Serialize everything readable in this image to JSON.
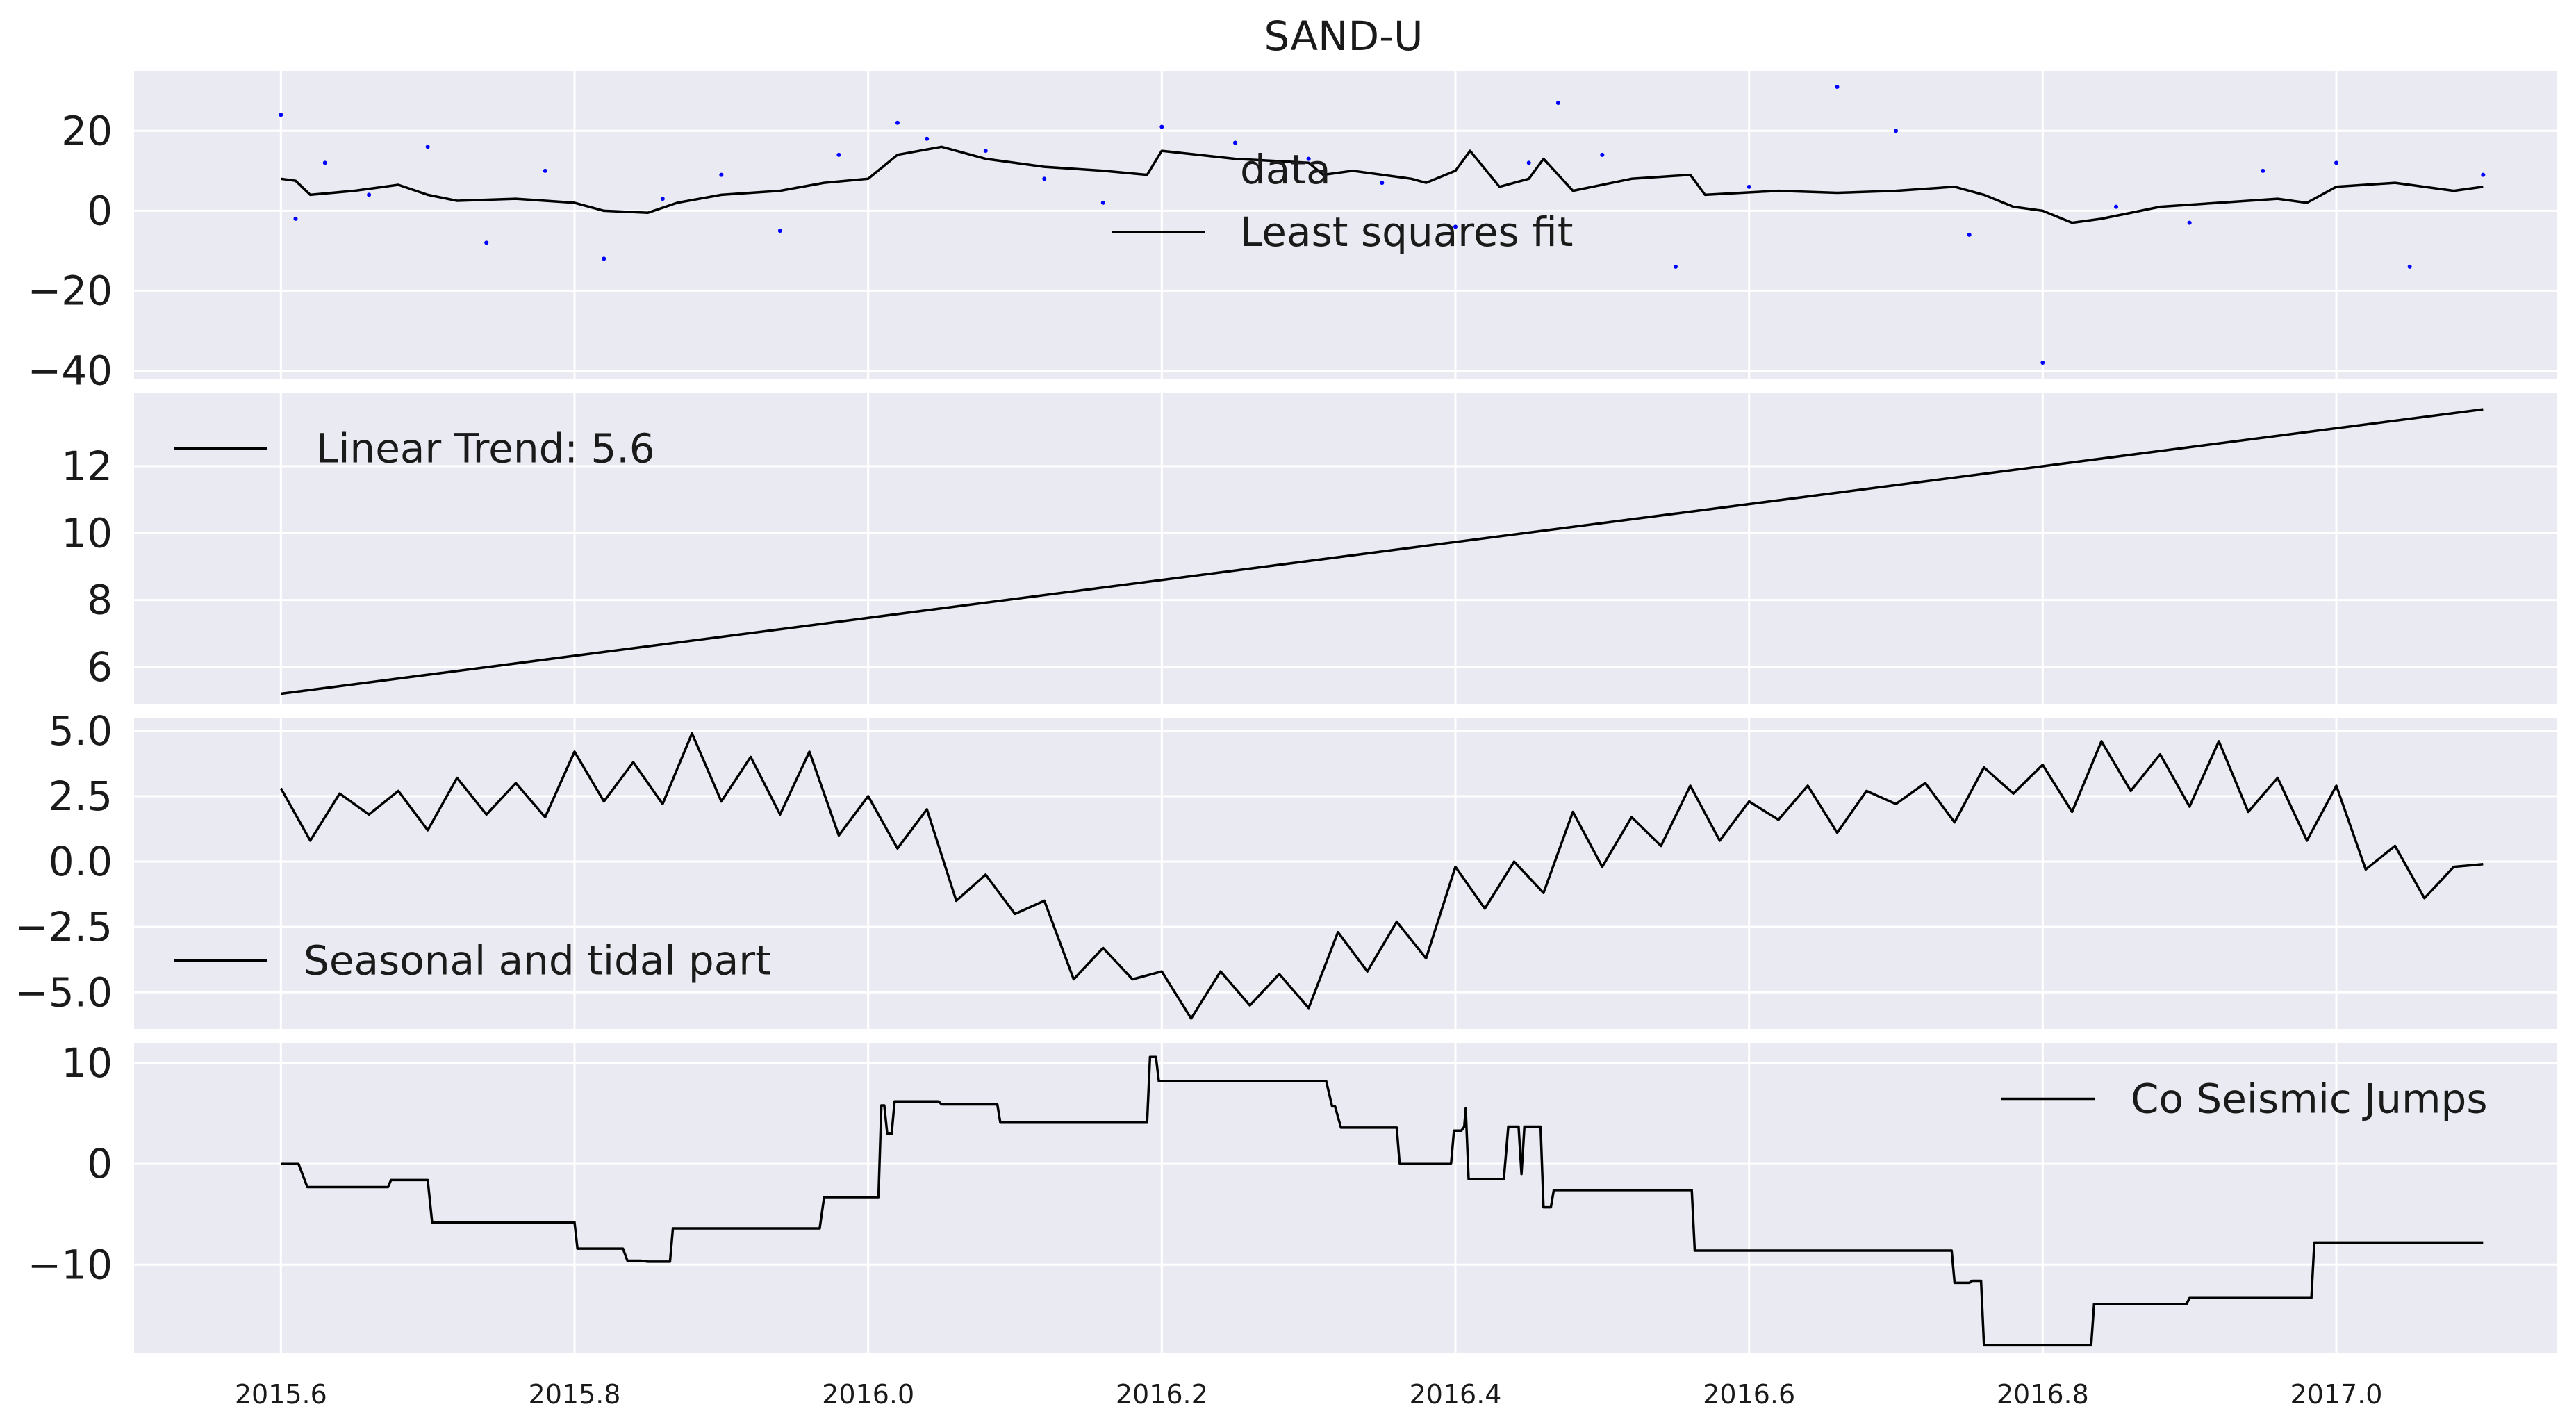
{
  "title": "SAND-U",
  "colors": {
    "panel_bg": "#eaeaf2",
    "grid": "#ffffff",
    "line": "#000000",
    "data_points": "#0000ff",
    "text": "#1a1a1a"
  },
  "chart_data": [
    {
      "panel": "residual-panel",
      "type": "scatter",
      "title": "SAND-U",
      "xlim": [
        2015.5,
        2017.15
      ],
      "ylim": [
        -42,
        35
      ],
      "yticks": [
        20,
        0,
        -20,
        -40
      ],
      "ytick_labels": [
        "20",
        "0",
        "−20",
        "−40"
      ],
      "legend": {
        "position": "center",
        "entries": [
          "data",
          "Least squares fit"
        ]
      },
      "series": [
        {
          "name": "data",
          "kind": "points",
          "x": [
            2015.6,
            2015.61,
            2015.63,
            2015.66,
            2015.7,
            2015.74,
            2015.78,
            2015.82,
            2015.86,
            2015.9,
            2015.94,
            2015.98,
            2016.02,
            2016.04,
            2016.08,
            2016.12,
            2016.16,
            2016.2,
            2016.25,
            2016.3,
            2016.35,
            2016.4,
            2016.45,
            2016.47,
            2016.5,
            2016.55,
            2016.6,
            2016.66,
            2016.7,
            2016.75,
            2016.8,
            2016.85,
            2016.9,
            2016.95,
            2017.0,
            2017.05,
            2017.1
          ],
          "y": [
            24,
            -2,
            12,
            4,
            16,
            -8,
            10,
            -12,
            3,
            9,
            -5,
            14,
            22,
            18,
            15,
            8,
            2,
            21,
            17,
            13,
            7,
            -4,
            12,
            27,
            14,
            -14,
            6,
            31,
            20,
            -6,
            -38,
            1,
            -3,
            10,
            12,
            -14,
            9
          ]
        },
        {
          "name": "Least squares fit",
          "kind": "line",
          "x": [
            2015.6,
            2015.61,
            2015.62,
            2015.65,
            2015.68,
            2015.7,
            2015.72,
            2015.76,
            2015.8,
            2015.82,
            2015.85,
            2015.87,
            2015.9,
            2015.94,
            2015.97,
            2016.0,
            2016.02,
            2016.05,
            2016.08,
            2016.12,
            2016.16,
            2016.19,
            2016.2,
            2016.25,
            2016.3,
            2016.31,
            2016.33,
            2016.37,
            2016.38,
            2016.4,
            2016.41,
            2016.43,
            2016.45,
            2016.46,
            2016.48,
            2016.52,
            2016.56,
            2016.57,
            2016.62,
            2016.66,
            2016.7,
            2016.74,
            2016.76,
            2016.78,
            2016.8,
            2016.82,
            2016.84,
            2016.88,
            2016.92,
            2016.96,
            2016.98,
            2017.0,
            2017.04,
            2017.08,
            2017.1
          ],
          "y": [
            8,
            7.5,
            4,
            5,
            6.5,
            4,
            2.5,
            3,
            2,
            0,
            -0.5,
            2,
            4,
            5,
            7,
            8,
            14,
            16,
            13,
            11,
            10,
            9,
            15,
            13,
            12,
            9,
            10,
            8,
            7,
            10,
            15,
            6,
            8,
            13,
            5,
            8,
            9,
            4,
            5,
            4.5,
            5,
            6,
            4,
            1,
            0,
            -3,
            -2,
            1,
            2,
            3,
            2,
            6,
            7,
            5,
            6
          ]
        }
      ]
    },
    {
      "panel": "linear-trend-panel",
      "type": "line",
      "xlim": [
        2015.5,
        2017.15
      ],
      "ylim": [
        4.9,
        14.2
      ],
      "yticks": [
        12,
        10,
        8,
        6
      ],
      "ytick_labels": [
        "12",
        "10",
        "8",
        "6"
      ],
      "legend": {
        "position": "top-left",
        "entries": [
          "Linear Trend: 5.6"
        ]
      },
      "series": [
        {
          "name": "Linear Trend: 5.6",
          "x": [
            2015.6,
            2017.1
          ],
          "y": [
            5.2,
            13.7
          ]
        }
      ]
    },
    {
      "panel": "seasonal-panel",
      "type": "line",
      "xlim": [
        2015.5,
        2017.15
      ],
      "ylim": [
        -6.4,
        5.5
      ],
      "yticks": [
        5.0,
        2.5,
        0.0,
        -2.5,
        -5.0
      ],
      "ytick_labels": [
        "5.0",
        "2.5",
        "0.0",
        "−2.5",
        "−5.0"
      ],
      "legend": {
        "position": "bottom-left",
        "entries": [
          "Seasonal and tidal part"
        ]
      },
      "series": [
        {
          "name": "Seasonal and tidal part",
          "x": [
            2015.6,
            2015.62,
            2015.64,
            2015.66,
            2015.68,
            2015.7,
            2015.72,
            2015.74,
            2015.76,
            2015.78,
            2015.8,
            2015.82,
            2015.84,
            2015.86,
            2015.88,
            2015.9,
            2015.92,
            2015.94,
            2015.96,
            2015.98,
            2016.0,
            2016.02,
            2016.04,
            2016.06,
            2016.08,
            2016.1,
            2016.12,
            2016.14,
            2016.16,
            2016.18,
            2016.2,
            2016.22,
            2016.24,
            2016.26,
            2016.28,
            2016.3,
            2016.32,
            2016.34,
            2016.36,
            2016.38,
            2016.4,
            2016.42,
            2016.44,
            2016.46,
            2016.48,
            2016.5,
            2016.52,
            2016.54,
            2016.56,
            2016.58,
            2016.6,
            2016.62,
            2016.64,
            2016.66,
            2016.68,
            2016.7,
            2016.72,
            2016.74,
            2016.76,
            2016.78,
            2016.8,
            2016.82,
            2016.84,
            2016.86,
            2016.88,
            2016.9,
            2016.92,
            2016.94,
            2016.96,
            2016.98,
            2017.0,
            2017.02,
            2017.04,
            2017.06,
            2017.08,
            2017.1
          ],
          "y": [
            2.8,
            0.8,
            2.6,
            1.8,
            2.7,
            1.2,
            3.2,
            1.8,
            3.0,
            1.7,
            4.2,
            2.3,
            3.8,
            2.2,
            4.9,
            2.3,
            4.0,
            1.8,
            4.2,
            1.0,
            2.5,
            0.5,
            2.0,
            -1.5,
            -0.5,
            -2.0,
            -1.5,
            -4.5,
            -3.3,
            -4.5,
            -4.2,
            -6.0,
            -4.2,
            -5.5,
            -4.3,
            -5.6,
            -2.7,
            -4.2,
            -2.3,
            -3.7,
            -0.2,
            -1.8,
            0.0,
            -1.2,
            1.9,
            -0.2,
            1.7,
            0.6,
            2.9,
            0.8,
            2.3,
            1.6,
            2.9,
            1.1,
            2.7,
            2.2,
            3.0,
            1.5,
            3.6,
            2.6,
            3.7,
            1.9,
            4.6,
            2.7,
            4.1,
            2.1,
            4.6,
            1.9,
            3.2,
            0.8,
            2.9,
            -0.3,
            0.6,
            -1.4,
            -0.2,
            -0.1
          ]
        }
      ]
    },
    {
      "panel": "jumps-panel",
      "type": "line",
      "xlim": [
        2015.5,
        2017.15
      ],
      "ylim": [
        -18.8,
        12
      ],
      "yticks": [
        10,
        0,
        -10
      ],
      "ytick_labels": [
        "10",
        "0",
        "−10"
      ],
      "xticks": [
        2015.6,
        2015.8,
        2016.0,
        2016.2,
        2016.4,
        2016.6,
        2016.8,
        2017.0
      ],
      "xtick_labels": [
        "2015.6",
        "2015.8",
        "2016.0",
        "2016.2",
        "2016.4",
        "2016.6",
        "2016.8",
        "2017.0"
      ],
      "legend": {
        "position": "top-right",
        "entries": [
          "Co Seismic Jumps"
        ]
      },
      "series": [
        {
          "name": "Co Seismic Jumps",
          "x": [
            2015.6,
            2015.612,
            2015.618,
            2015.673,
            2015.675,
            2015.7,
            2015.703,
            2015.8,
            2015.802,
            2015.833,
            2015.836,
            2015.845,
            2015.85,
            2015.865,
            2015.867,
            2015.967,
            2015.97,
            2016.007,
            2016.009,
            2016.011,
            2016.013,
            2016.016,
            2016.018,
            2016.023,
            2016.026,
            2016.048,
            2016.05,
            2016.088,
            2016.09,
            2016.19,
            2016.192,
            2016.196,
            2016.198,
            2016.312,
            2016.316,
            2016.318,
            2016.322,
            2016.36,
            2016.362,
            2016.397,
            2016.399,
            2016.404,
            2016.406,
            2016.407,
            2016.409,
            2016.41,
            2016.412,
            2016.433,
            2016.436,
            2016.443,
            2016.445,
            2016.447,
            2016.449,
            2016.458,
            2016.46,
            2016.465,
            2016.467,
            2016.561,
            2016.563,
            2016.738,
            2016.74,
            2016.75,
            2016.752,
            2016.758,
            2016.76,
            2016.833,
            2016.835,
            2016.898,
            2016.9,
            2016.983,
            2016.985,
            2017.1
          ],
          "y": [
            0,
            0,
            -2.3,
            -2.3,
            -1.6,
            -1.6,
            -5.8,
            -5.8,
            -8.4,
            -8.4,
            -9.6,
            -9.6,
            -9.7,
            -9.7,
            -6.4,
            -6.4,
            -3.3,
            -3.3,
            5.8,
            5.8,
            3.0,
            3.0,
            6.2,
            6.2,
            6.2,
            6.2,
            5.9,
            5.9,
            4.1,
            4.1,
            10.6,
            10.6,
            8.2,
            8.2,
            5.7,
            5.7,
            3.6,
            3.6,
            0.0,
            0.0,
            3.3,
            3.3,
            3.7,
            5.5,
            -1.5,
            -1.5,
            -1.5,
            -1.5,
            3.7,
            3.7,
            -1.0,
            3.7,
            3.7,
            3.7,
            -4.3,
            -4.3,
            -2.6,
            -2.6,
            -8.6,
            -8.6,
            -11.8,
            -11.8,
            -11.6,
            -11.6,
            -18.0,
            -18.0,
            -13.9,
            -13.9,
            -13.3,
            -13.3,
            -7.8,
            -7.8
          ]
        }
      ]
    }
  ]
}
